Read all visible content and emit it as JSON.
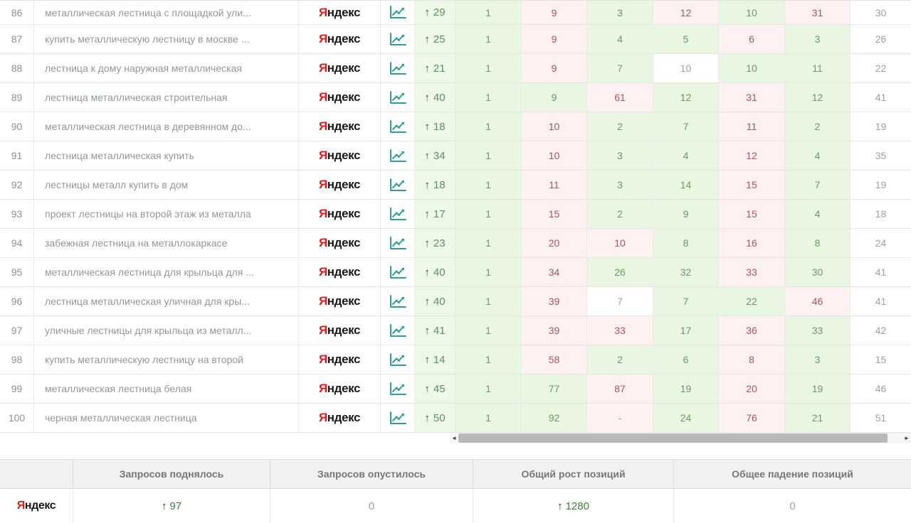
{
  "colors": {
    "green_cell_bg": "#e9f6e1",
    "green_text": "#699b61",
    "red_cell_bg": "#fdf1f1",
    "red_text": "#ab5360",
    "neutral_text": "#9ba1a6",
    "change_cell_bg": "#edf8e6",
    "arrow_dark_green": "#2c5a2e",
    "yandex_red": "#e21a1a",
    "chart_icon_teal": "#2aa198",
    "summary_header_bg": "#f1f1f1",
    "scrollbar_thumb": "#b9b9b9"
  },
  "icons": {
    "chart": "chart-line-icon",
    "up_arrow": "↑",
    "scroll_left": "◄",
    "scroll_right": "►"
  },
  "brand": {
    "first": "Я",
    "rest": "ндекс"
  },
  "table": {
    "up_arrow": "↑",
    "rows": [
      {
        "num": "86",
        "keyword": "металлическая лестница с площадкой ули...",
        "change": "29",
        "cells": [
          {
            "v": "1",
            "c": "g"
          },
          {
            "v": "9",
            "c": "r"
          },
          {
            "v": "3",
            "c": "g"
          },
          {
            "v": "12",
            "c": "r"
          },
          {
            "v": "10",
            "c": "g"
          },
          {
            "v": "31",
            "c": "r"
          }
        ],
        "last": "30"
      },
      {
        "num": "87",
        "keyword": "купить металлическую лестницу в москве ...",
        "change": "25",
        "cells": [
          {
            "v": "1",
            "c": "g"
          },
          {
            "v": "9",
            "c": "r"
          },
          {
            "v": "4",
            "c": "g"
          },
          {
            "v": "5",
            "c": "g"
          },
          {
            "v": "6",
            "c": "r"
          },
          {
            "v": "3",
            "c": "g"
          }
        ],
        "last": "26"
      },
      {
        "num": "88",
        "keyword": "лестница к дому наружная металлическая",
        "change": "21",
        "cells": [
          {
            "v": "1",
            "c": "g"
          },
          {
            "v": "9",
            "c": "r"
          },
          {
            "v": "7",
            "c": "g"
          },
          {
            "v": "10",
            "c": "w"
          },
          {
            "v": "10",
            "c": "g"
          },
          {
            "v": "11",
            "c": "g"
          }
        ],
        "last": "22"
      },
      {
        "num": "89",
        "keyword": "лестница металлическая строительная",
        "change": "40",
        "cells": [
          {
            "v": "1",
            "c": "g"
          },
          {
            "v": "9",
            "c": "g"
          },
          {
            "v": "61",
            "c": "r"
          },
          {
            "v": "12",
            "c": "g"
          },
          {
            "v": "31",
            "c": "r"
          },
          {
            "v": "12",
            "c": "g"
          }
        ],
        "last": "41"
      },
      {
        "num": "90",
        "keyword": "металлическая лестница в деревянном до...",
        "change": "18",
        "cells": [
          {
            "v": "1",
            "c": "g"
          },
          {
            "v": "10",
            "c": "r"
          },
          {
            "v": "2",
            "c": "g"
          },
          {
            "v": "7",
            "c": "g"
          },
          {
            "v": "11",
            "c": "r"
          },
          {
            "v": "2",
            "c": "g"
          }
        ],
        "last": "19"
      },
      {
        "num": "91",
        "keyword": "лестница металлическая купить",
        "change": "34",
        "cells": [
          {
            "v": "1",
            "c": "g"
          },
          {
            "v": "10",
            "c": "r"
          },
          {
            "v": "3",
            "c": "g"
          },
          {
            "v": "4",
            "c": "g"
          },
          {
            "v": "12",
            "c": "r"
          },
          {
            "v": "4",
            "c": "g"
          }
        ],
        "last": "35"
      },
      {
        "num": "92",
        "keyword": "лестницы металл купить в дом",
        "change": "18",
        "cells": [
          {
            "v": "1",
            "c": "g"
          },
          {
            "v": "11",
            "c": "r"
          },
          {
            "v": "3",
            "c": "g"
          },
          {
            "v": "14",
            "c": "g"
          },
          {
            "v": "15",
            "c": "r"
          },
          {
            "v": "7",
            "c": "g"
          }
        ],
        "last": "19"
      },
      {
        "num": "93",
        "keyword": "проект лестницы на второй этаж из металла",
        "change": "17",
        "cells": [
          {
            "v": "1",
            "c": "g"
          },
          {
            "v": "15",
            "c": "r"
          },
          {
            "v": "2",
            "c": "g"
          },
          {
            "v": "9",
            "c": "g"
          },
          {
            "v": "15",
            "c": "r"
          },
          {
            "v": "4",
            "c": "g"
          }
        ],
        "last": "18"
      },
      {
        "num": "94",
        "keyword": "забежная лестница на металлокаркасе",
        "change": "23",
        "cells": [
          {
            "v": "1",
            "c": "g"
          },
          {
            "v": "20",
            "c": "r"
          },
          {
            "v": "10",
            "c": "r"
          },
          {
            "v": "8",
            "c": "g"
          },
          {
            "v": "16",
            "c": "r"
          },
          {
            "v": "8",
            "c": "g"
          }
        ],
        "last": "24"
      },
      {
        "num": "95",
        "keyword": "металлическая лестница для крыльца для ...",
        "change": "40",
        "cells": [
          {
            "v": "1",
            "c": "g"
          },
          {
            "v": "34",
            "c": "r"
          },
          {
            "v": "26",
            "c": "g"
          },
          {
            "v": "32",
            "c": "g"
          },
          {
            "v": "33",
            "c": "r"
          },
          {
            "v": "30",
            "c": "g"
          }
        ],
        "last": "41"
      },
      {
        "num": "96",
        "keyword": "лестница металлическая уличная для кры...",
        "change": "40",
        "cells": [
          {
            "v": "1",
            "c": "g"
          },
          {
            "v": "39",
            "c": "r"
          },
          {
            "v": "7",
            "c": "w"
          },
          {
            "v": "7",
            "c": "g"
          },
          {
            "v": "22",
            "c": "g"
          },
          {
            "v": "46",
            "c": "r"
          }
        ],
        "last": "41"
      },
      {
        "num": "97",
        "keyword": "уличные лестницы для крыльца из металл...",
        "change": "41",
        "cells": [
          {
            "v": "1",
            "c": "g"
          },
          {
            "v": "39",
            "c": "r"
          },
          {
            "v": "33",
            "c": "r"
          },
          {
            "v": "17",
            "c": "g"
          },
          {
            "v": "36",
            "c": "r"
          },
          {
            "v": "33",
            "c": "g"
          }
        ],
        "last": "42"
      },
      {
        "num": "98",
        "keyword": "купить металлическую лестницу на второй",
        "change": "14",
        "cells": [
          {
            "v": "1",
            "c": "g"
          },
          {
            "v": "58",
            "c": "r"
          },
          {
            "v": "2",
            "c": "g"
          },
          {
            "v": "6",
            "c": "g"
          },
          {
            "v": "8",
            "c": "r"
          },
          {
            "v": "3",
            "c": "g"
          }
        ],
        "last": "15"
      },
      {
        "num": "99",
        "keyword": "металлическая лестница белая",
        "change": "45",
        "cells": [
          {
            "v": "1",
            "c": "g"
          },
          {
            "v": "77",
            "c": "g"
          },
          {
            "v": "87",
            "c": "r"
          },
          {
            "v": "19",
            "c": "g"
          },
          {
            "v": "20",
            "c": "r"
          },
          {
            "v": "19",
            "c": "g"
          }
        ],
        "last": "46"
      },
      {
        "num": "100",
        "keyword": "черная металлическая лестница",
        "change": "50",
        "cells": [
          {
            "v": "1",
            "c": "g"
          },
          {
            "v": "92",
            "c": "g"
          },
          {
            "v": "-",
            "c": "d"
          },
          {
            "v": "24",
            "c": "g"
          },
          {
            "v": "76",
            "c": "r"
          },
          {
            "v": "21",
            "c": "g"
          }
        ],
        "last": "51"
      }
    ]
  },
  "scrollbar": {
    "left_arrow": "◄",
    "right_arrow": "►"
  },
  "summary": {
    "up_arrow": "↑",
    "col_headers": [
      "Запросов поднялось",
      "Запросов опустилось",
      "Общий рост позиций",
      "Общее падение позиций"
    ],
    "raised": "97",
    "dropped": "0",
    "total_growth": "1280",
    "total_drop": "0"
  }
}
